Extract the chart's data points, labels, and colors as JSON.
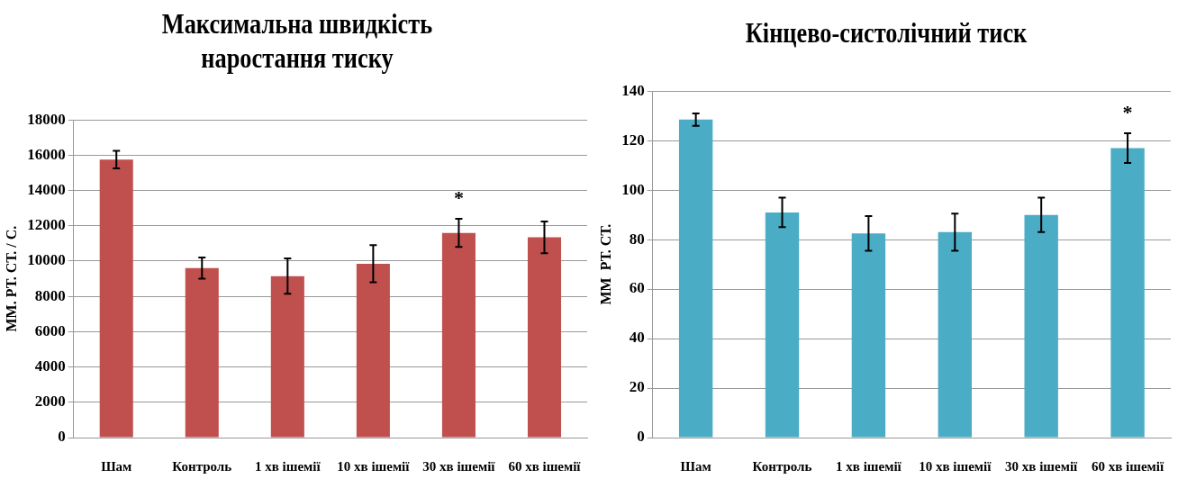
{
  "chart_data": [
    {
      "type": "bar",
      "title": "Максимальна  швидкість наростання тиску",
      "ylabel": "ММ. РТ. СТ. / С.",
      "categories": [
        "Шам",
        "Контроль",
        "1 хв ішемії",
        "10 хв ішемії",
        "30 хв ішемії",
        "60 хв ішемії"
      ],
      "values": [
        15750,
        9600,
        9150,
        9850,
        11600,
        11350
      ],
      "errors": [
        500,
        600,
        1000,
        1050,
        800,
        900
      ],
      "color": "#c0504d",
      "ylim": [
        0,
        18000
      ],
      "yticks": [
        0,
        2000,
        4000,
        6000,
        8000,
        10000,
        12000,
        14000,
        16000,
        18000
      ],
      "grid": "y",
      "legend": false,
      "annotations": [
        {
          "text": "*",
          "x": "30 хв ішемії",
          "y": 12400
        }
      ]
    },
    {
      "type": "bar",
      "title": "Кінцево-систолічний тиск",
      "ylabel": "ММ  РТ. СТ.",
      "categories": [
        "Шам",
        "Контроль",
        "1 хв ішемії",
        "10 хв ішемії",
        "30 хв ішемії",
        "60 хв ішемії"
      ],
      "values": [
        128.5,
        91,
        82.5,
        83,
        90,
        117
      ],
      "errors": [
        2.5,
        6,
        7,
        7.5,
        7,
        6
      ],
      "color": "#4bacc6",
      "ylim": [
        0,
        140
      ],
      "yticks": [
        0,
        20,
        40,
        60,
        80,
        100,
        120,
        140
      ],
      "grid": "y",
      "legend": false,
      "annotations": [
        {
          "text": "*",
          "x": "60 хв ішемії",
          "y": 123
        }
      ]
    }
  ]
}
